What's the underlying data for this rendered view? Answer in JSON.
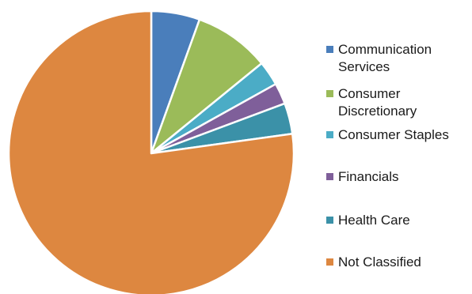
{
  "chart_data": {
    "type": "pie",
    "title": "",
    "start_angle_deg": 0,
    "direction": "clockwise",
    "slice_border_color": "#ffffff",
    "legend_position": "right",
    "categories": [
      "Communication Services",
      "Consumer Discretionary",
      "Consumer Staples",
      "Financials",
      "Health Care",
      "Not Classified"
    ],
    "values": [
      5.5,
      8.6,
      2.8,
      2.4,
      3.5,
      77.2
    ],
    "colors": [
      "#4a7ebb",
      "#9bbb59",
      "#4bacc6",
      "#7f5f9a",
      "#3b91a8",
      "#dd8740"
    ]
  }
}
